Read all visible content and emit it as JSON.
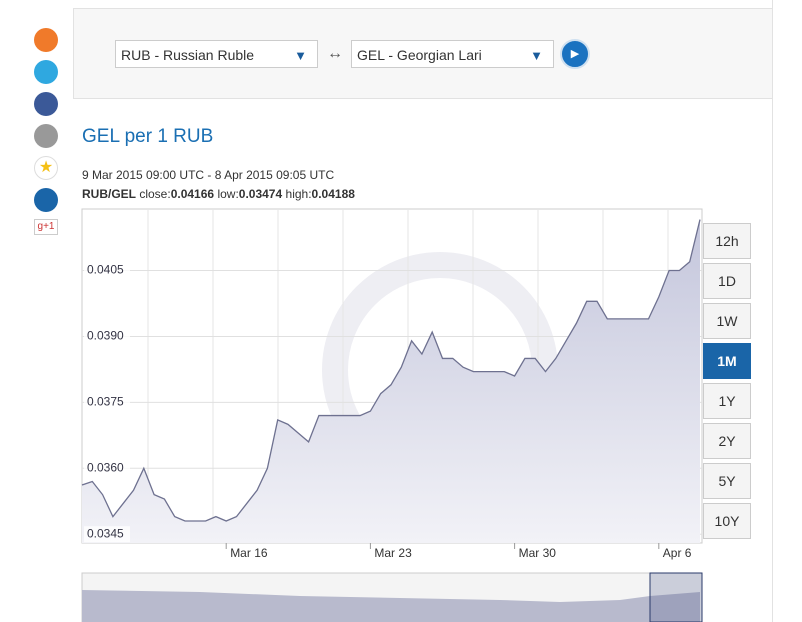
{
  "sidebar": {
    "gplus": "g+1"
  },
  "converter": {
    "from": "RUB - Russian Ruble",
    "swap": "↔",
    "to": "GEL - Georgian Lari"
  },
  "chart_data": {
    "type": "line",
    "title": "GEL per 1 RUB",
    "subtitle": "9 Mar 2015 09:00 UTC - 8 Apr 2015 09:05 UTC",
    "stats": {
      "pair": "RUB/GEL",
      "close_label": "close:",
      "close": 0.04166,
      "low_label": "low:",
      "low": 0.03474,
      "high_label": "high:",
      "high": 0.04188
    },
    "categories": [
      null,
      null,
      null,
      null,
      null,
      null,
      null,
      null,
      null,
      null,
      null,
      null,
      null,
      null,
      "Mar 16",
      null,
      null,
      null,
      null,
      null,
      null,
      null,
      null,
      null,
      null,
      null,
      null,
      null,
      "Mar 23",
      null,
      null,
      null,
      null,
      null,
      null,
      null,
      null,
      null,
      null,
      null,
      null,
      null,
      "Mar 30",
      null,
      null,
      null,
      null,
      null,
      null,
      null,
      null,
      null,
      null,
      null,
      null,
      null,
      "Apr 6",
      null,
      null,
      null,
      null
    ],
    "values": [
      0.03562,
      0.0357,
      0.0354,
      0.0349,
      0.0352,
      0.0355,
      0.036,
      0.0354,
      0.0353,
      0.0349,
      0.0348,
      0.0348,
      0.0348,
      0.0349,
      0.0348,
      0.0349,
      0.0352,
      0.0355,
      0.036,
      0.0371,
      0.037,
      0.0368,
      0.0366,
      0.0372,
      0.0372,
      0.0372,
      0.0372,
      0.0372,
      0.0373,
      0.0377,
      0.0379,
      0.0383,
      0.0389,
      0.0386,
      0.0391,
      0.0385,
      0.0385,
      0.0383,
      0.0382,
      0.0382,
      0.0382,
      0.0382,
      0.0381,
      0.0385,
      0.0385,
      0.0382,
      0.0385,
      0.0389,
      0.0393,
      0.0398,
      0.0398,
      0.0394,
      0.0394,
      0.0394,
      0.0394,
      0.0394,
      0.0399,
      0.0405,
      0.0405,
      0.0407,
      0.04166
    ],
    "color": "#6e7190",
    "ylim": [
      0.0343,
      0.0419
    ],
    "yticks": [
      0.0345,
      {
        "value": 0.036,
        "label": "0.0360"
      },
      0.0375,
      {
        "value": 0.039,
        "label": "0.0390"
      },
      0.0405
    ],
    "grid": true
  },
  "range_buttons": {
    "labels": [
      "12h",
      "1D",
      "1W",
      "1M",
      "1Y",
      "2Y",
      "5Y",
      "10Y"
    ],
    "selected": 3
  }
}
